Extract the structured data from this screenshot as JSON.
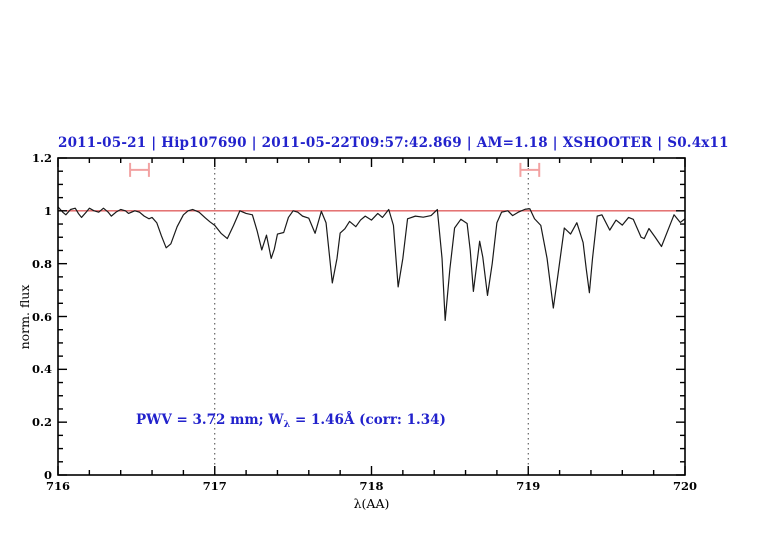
{
  "annotation": {
    "prefix": "PWV = 3.72 mm; W",
    "subscript": "λ",
    "suffix": " = 1.46Å (corr: 1.34)"
  },
  "colors": {
    "title_blue": "#2222cc",
    "continuum_red": "#e06060",
    "marker_pink": "#f2a2a2",
    "spectrum_black": "#1a1a1a",
    "dotted_gray": "#444444",
    "frame_black": "#000000",
    "background": "#ffffff"
  },
  "chart_data": {
    "type": "line",
    "title": "2011-05-21 | Hip107690 | 2011-05-22T09:57:42.869 | AM=1.18 | XSHOOTER | S0.4x11",
    "xlabel": "λ(AA)",
    "ylabel": "norm. flux",
    "xlim": [
      716,
      720
    ],
    "ylim": [
      0,
      1.2
    ],
    "grid": "off",
    "legend": "none",
    "x_ticks": {
      "major": [
        716,
        717,
        718,
        719,
        720
      ],
      "labels": [
        "716",
        "717",
        "718",
        "719",
        "720"
      ],
      "minor_step": 0.2
    },
    "y_ticks": {
      "major": [
        0,
        0.2,
        0.4,
        0.6,
        0.8,
        1,
        1.2
      ],
      "labels": [
        "0",
        "0.2",
        "0.4",
        "0.6",
        "0.8",
        "1",
        "1.2"
      ],
      "minor_step": 0.05
    },
    "dotted_vlines_x": [
      717,
      719
    ],
    "continuum_line_y": 1.0,
    "range_markers": [
      {
        "x_start": 716.46,
        "x_end": 716.58,
        "y": 1.155
      },
      {
        "x_start": 718.95,
        "x_end": 719.07,
        "y": 1.155
      }
    ],
    "series": [
      {
        "name": "normalized-telluric-spectrum",
        "points": [
          [
            716.0,
            1.015
          ],
          [
            716.03,
            0.995
          ],
          [
            716.05,
            0.985
          ],
          [
            716.08,
            1.005
          ],
          [
            716.11,
            1.01
          ],
          [
            716.13,
            0.99
          ],
          [
            716.15,
            0.975
          ],
          [
            716.18,
            0.995
          ],
          [
            716.2,
            1.01
          ],
          [
            716.23,
            1.0
          ],
          [
            716.26,
            0.995
          ],
          [
            716.29,
            1.01
          ],
          [
            716.32,
            0.995
          ],
          [
            716.34,
            0.98
          ],
          [
            716.37,
            0.995
          ],
          [
            716.4,
            1.005
          ],
          [
            716.43,
            1.0
          ],
          [
            716.45,
            0.99
          ],
          [
            716.49,
            1.0
          ],
          [
            716.52,
            0.995
          ],
          [
            716.55,
            0.98
          ],
          [
            716.58,
            0.97
          ],
          [
            716.6,
            0.975
          ],
          [
            716.63,
            0.955
          ],
          [
            716.66,
            0.905
          ],
          [
            716.69,
            0.86
          ],
          [
            716.72,
            0.875
          ],
          [
            716.76,
            0.94
          ],
          [
            716.8,
            0.985
          ],
          [
            716.83,
            1.0
          ],
          [
            716.86,
            1.005
          ],
          [
            716.9,
            0.995
          ],
          [
            716.94,
            0.973
          ],
          [
            716.97,
            0.958
          ],
          [
            717.0,
            0.945
          ],
          [
            717.04,
            0.915
          ],
          [
            717.08,
            0.895
          ],
          [
            717.12,
            0.945
          ],
          [
            717.16,
            1.0
          ],
          [
            717.2,
            0.99
          ],
          [
            717.24,
            0.985
          ],
          [
            717.27,
            0.925
          ],
          [
            717.3,
            0.852
          ],
          [
            717.33,
            0.908
          ],
          [
            717.36,
            0.82
          ],
          [
            717.38,
            0.855
          ],
          [
            717.4,
            0.912
          ],
          [
            717.44,
            0.918
          ],
          [
            717.47,
            0.975
          ],
          [
            717.5,
            1.0
          ],
          [
            717.53,
            0.995
          ],
          [
            717.56,
            0.98
          ],
          [
            717.6,
            0.972
          ],
          [
            717.64,
            0.915
          ],
          [
            717.68,
            0.998
          ],
          [
            717.71,
            0.955
          ],
          [
            717.75,
            0.727
          ],
          [
            717.78,
            0.82
          ],
          [
            717.8,
            0.916
          ],
          [
            717.83,
            0.932
          ],
          [
            717.86,
            0.96
          ],
          [
            717.9,
            0.94
          ],
          [
            717.93,
            0.965
          ],
          [
            717.96,
            0.98
          ],
          [
            718.0,
            0.965
          ],
          [
            718.04,
            0.99
          ],
          [
            718.07,
            0.975
          ],
          [
            718.11,
            1.005
          ],
          [
            718.14,
            0.945
          ],
          [
            718.17,
            0.712
          ],
          [
            718.2,
            0.82
          ],
          [
            718.23,
            0.97
          ],
          [
            718.28,
            0.98
          ],
          [
            718.33,
            0.976
          ],
          [
            718.38,
            0.982
          ],
          [
            718.42,
            1.005
          ],
          [
            718.45,
            0.82
          ],
          [
            718.47,
            0.585
          ],
          [
            718.5,
            0.78
          ],
          [
            718.53,
            0.935
          ],
          [
            718.57,
            0.968
          ],
          [
            718.61,
            0.952
          ],
          [
            718.63,
            0.85
          ],
          [
            718.65,
            0.695
          ],
          [
            718.67,
            0.79
          ],
          [
            718.69,
            0.885
          ],
          [
            718.71,
            0.825
          ],
          [
            718.74,
            0.68
          ],
          [
            718.77,
            0.8
          ],
          [
            718.8,
            0.955
          ],
          [
            718.83,
            0.995
          ],
          [
            718.87,
            1.0
          ],
          [
            718.9,
            0.982
          ],
          [
            718.94,
            0.996
          ],
          [
            718.98,
            1.006
          ],
          [
            719.01,
            1.008
          ],
          [
            719.04,
            0.97
          ],
          [
            719.08,
            0.945
          ],
          [
            719.12,
            0.82
          ],
          [
            719.16,
            0.632
          ],
          [
            719.19,
            0.76
          ],
          [
            719.23,
            0.935
          ],
          [
            719.27,
            0.912
          ],
          [
            719.31,
            0.955
          ],
          [
            719.35,
            0.88
          ],
          [
            719.37,
            0.78
          ],
          [
            719.39,
            0.69
          ],
          [
            719.41,
            0.82
          ],
          [
            719.44,
            0.98
          ],
          [
            719.47,
            0.985
          ],
          [
            719.52,
            0.927
          ],
          [
            719.56,
            0.965
          ],
          [
            719.6,
            0.946
          ],
          [
            719.64,
            0.975
          ],
          [
            719.67,
            0.968
          ],
          [
            719.72,
            0.9
          ],
          [
            719.74,
            0.895
          ],
          [
            719.77,
            0.933
          ],
          [
            719.81,
            0.9
          ],
          [
            719.85,
            0.865
          ],
          [
            719.9,
            0.94
          ],
          [
            719.93,
            0.985
          ],
          [
            719.97,
            0.956
          ],
          [
            720.0,
            0.97
          ]
        ]
      }
    ]
  }
}
